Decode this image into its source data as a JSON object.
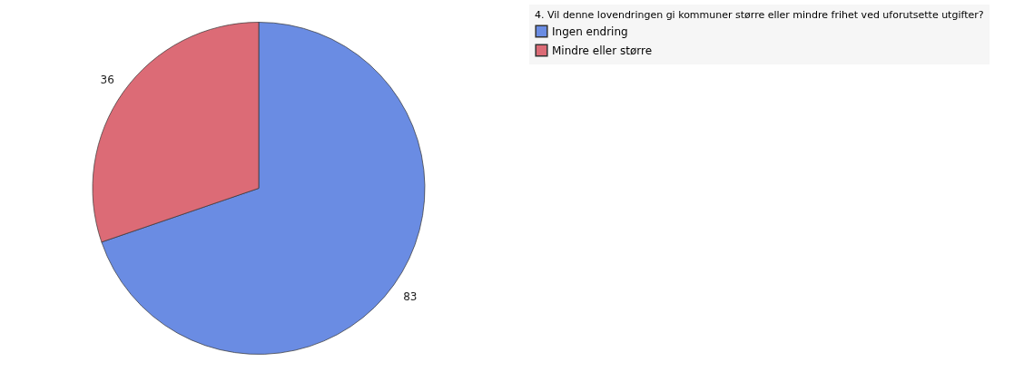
{
  "chart_data": {
    "type": "pie",
    "legend_title": "4. Vil denne lovendringen gi kommuner større eller mindre frihet ved uforutsette utgifter?",
    "categories": [
      "Ingen endring",
      "Mindre eller større"
    ],
    "values": [
      83,
      36
    ],
    "colors": [
      "#6a8ce3",
      "#dc6b76"
    ],
    "data_labels": true,
    "legend": "right"
  }
}
